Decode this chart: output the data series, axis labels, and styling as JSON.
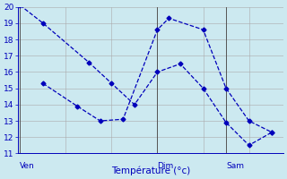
{
  "bg_color": "#cce9f0",
  "grid_color": "#aaaaaa",
  "line_color": "#0000bb",
  "vline_color": "#555555",
  "xlabel": "Température (°c)",
  "ylim_min": 11,
  "ylim_max": 20,
  "yticks": [
    11,
    12,
    13,
    14,
    15,
    16,
    17,
    18,
    19,
    20
  ],
  "ven_tick": 0,
  "dim_tick": 6,
  "sam_tick": 9,
  "xlim_min": -0.1,
  "xlim_max": 11.5,
  "line1_x": [
    0,
    1,
    3,
    4,
    5,
    6,
    7,
    8,
    9,
    10,
    11
  ],
  "line1_y": [
    20.1,
    19.0,
    16.6,
    15.3,
    14.0,
    16.0,
    16.5,
    15.0,
    12.9,
    11.5,
    12.3
  ],
  "line2_x": [
    1,
    2.5,
    3.5,
    4.5,
    6,
    6.5,
    8,
    9,
    10,
    11
  ],
  "line2_y": [
    15.3,
    13.9,
    13.0,
    13.1,
    18.6,
    19.3,
    18.6,
    15.0,
    13.0,
    12.3
  ]
}
